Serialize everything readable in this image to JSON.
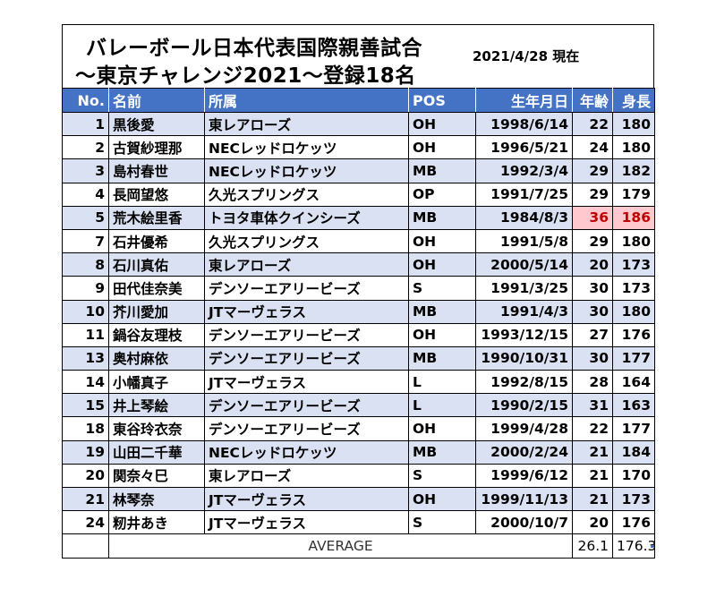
{
  "title_line1": "バレーボール日本代表国際親善試合",
  "title_line2": "〜東京チャレンジ2021〜登録18名",
  "date_label": "2021/4/28 現在",
  "columns": [
    "No.",
    "名前",
    "所属",
    "POS",
    "生年月日",
    "年齢",
    "身長"
  ],
  "rows": [
    {
      "no": "1",
      "name": "黒後愛",
      "team": "東レアローズ",
      "pos": "OH",
      "birth": "1998/6/14",
      "age": "22",
      "height": "180"
    },
    {
      "no": "2",
      "name": "古賀紗理那",
      "team": "NECレッドロケッツ",
      "pos": "OH",
      "birth": "1996/5/21",
      "age": "24",
      "height": "180"
    },
    {
      "no": "3",
      "name": "島村春世",
      "team": "NECレッドロケッツ",
      "pos": "MB",
      "birth": "1992/3/4",
      "age": "29",
      "height": "182"
    },
    {
      "no": "4",
      "name": "長岡望悠",
      "team": "久光スプリングス",
      "pos": "OP",
      "birth": "1991/7/25",
      "age": "29",
      "height": "179"
    },
    {
      "no": "5",
      "name": "荒木絵里香",
      "team": "トヨタ車体クインシーズ",
      "pos": "MB",
      "birth": "1984/8/3",
      "age": "36",
      "height": "186",
      "highlight": true
    },
    {
      "no": "7",
      "name": "石井優希",
      "team": "久光スプリングス",
      "pos": "OH",
      "birth": "1991/5/8",
      "age": "29",
      "height": "180"
    },
    {
      "no": "8",
      "name": "石川真佑",
      "team": "東レアローズ",
      "pos": "OH",
      "birth": "2000/5/14",
      "age": "20",
      "height": "173"
    },
    {
      "no": "9",
      "name": "田代佳奈美",
      "team": "デンソーエアリービーズ",
      "pos": "S",
      "birth": "1991/3/25",
      "age": "30",
      "height": "173"
    },
    {
      "no": "10",
      "name": "芥川愛加",
      "team": "JTマーヴェラス",
      "pos": "MB",
      "birth": "1991/4/3",
      "age": "30",
      "height": "180"
    },
    {
      "no": "11",
      "name": "鍋谷友理枝",
      "team": "デンソーエアリービーズ",
      "pos": "OH",
      "birth": "1993/12/15",
      "age": "27",
      "height": "176"
    },
    {
      "no": "13",
      "name": "奥村麻依",
      "team": "デンソーエアリービーズ",
      "pos": "MB",
      "birth": "1990/10/31",
      "age": "30",
      "height": "177"
    },
    {
      "no": "14",
      "name": "小幡真子",
      "team": "JTマーヴェラス",
      "pos": "L",
      "birth": "1992/8/15",
      "age": "28",
      "height": "164"
    },
    {
      "no": "15",
      "name": "井上琴絵",
      "team": "デンソーエアリービーズ",
      "pos": "L",
      "birth": "1990/2/15",
      "age": "31",
      "height": "163"
    },
    {
      "no": "18",
      "name": "東谷玲衣奈",
      "team": "デンソーエアリービーズ",
      "pos": "OH",
      "birth": "1999/4/28",
      "age": "22",
      "height": "177"
    },
    {
      "no": "19",
      "name": "山田二千華",
      "team": "NECレッドロケッツ",
      "pos": "MB",
      "birth": "2000/2/24",
      "age": "21",
      "height": "184"
    },
    {
      "no": "20",
      "name": "関奈々巳",
      "team": "東レアローズ",
      "pos": "S",
      "birth": "1999/6/12",
      "age": "21",
      "height": "170"
    },
    {
      "no": "21",
      "name": "林琴奈",
      "team": "JTマーヴェラス",
      "pos": "OH",
      "birth": "1999/11/13",
      "age": "21",
      "height": "173"
    },
    {
      "no": "24",
      "name": "籾井あき",
      "team": "JTマーヴェラス",
      "pos": "S",
      "birth": "2000/10/7",
      "age": "20",
      "height": "176"
    }
  ],
  "average_label": "AVERAGE",
  "average_age": "26.1",
  "average_height": "176.3",
  "colors": {
    "header": "#4472c4",
    "band": "#d9e1f2",
    "highlight_bg": "#ffc7ce",
    "highlight_fg": "#c00000"
  }
}
